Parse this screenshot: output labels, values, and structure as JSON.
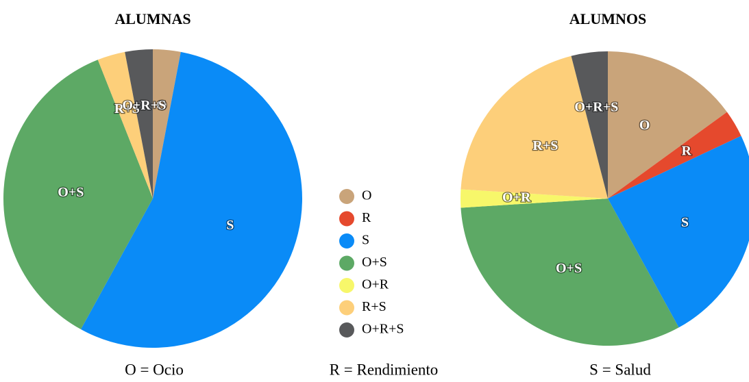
{
  "chart_data": [
    {
      "type": "pie",
      "title": "ALUMNAS",
      "categories": [
        "O",
        "R",
        "S",
        "O+S",
        "O+R",
        "R+S",
        "O+R+S"
      ],
      "values": [
        3,
        0,
        55,
        36,
        0,
        3,
        3
      ],
      "colors": [
        "#c9a47a",
        "#e5492d",
        "#0a8bf7",
        "#5da965",
        "#f7f76a",
        "#fdcf7a",
        "#58595b"
      ]
    },
    {
      "type": "pie",
      "title": "ALUMNOS",
      "categories": [
        "O",
        "R",
        "S",
        "O+S",
        "O+R",
        "R+S",
        "O+R+S"
      ],
      "values": [
        15,
        3,
        24,
        32,
        2,
        20,
        4
      ],
      "colors": [
        "#c9a47a",
        "#e5492d",
        "#0a8bf7",
        "#5da965",
        "#f7f76a",
        "#fdcf7a",
        "#58595b"
      ]
    }
  ],
  "notes": [
    "O = Ocio",
    "R = Rendimiento",
    "S = Salud"
  ]
}
